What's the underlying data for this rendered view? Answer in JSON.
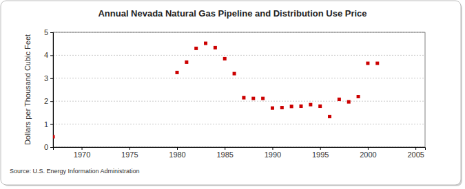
{
  "chart_data": {
    "type": "scatter",
    "title": "Annual Nevada Natural Gas Pipeline and Distribution Use Price",
    "y_label": "Dollars per Thousand Cubic Feet",
    "source": "Source: U.S. Energy Information Administration",
    "x": [
      1967,
      1980,
      1981,
      1982,
      1983,
      1984,
      1985,
      1986,
      1987,
      1988,
      1989,
      1990,
      1991,
      1992,
      1993,
      1994,
      1995,
      1996,
      1997,
      1998,
      1999,
      2000,
      2001
    ],
    "values": [
      0.45,
      3.25,
      3.7,
      4.3,
      4.52,
      4.33,
      3.85,
      3.2,
      2.15,
      2.12,
      2.12,
      1.7,
      1.72,
      1.77,
      1.78,
      1.85,
      1.78,
      1.33,
      2.08,
      1.97,
      2.2,
      3.65,
      3.65
    ],
    "color": "#cc0000",
    "marker": "square",
    "xlim": [
      1967,
      2006
    ],
    "xticks": [
      1970,
      1975,
      1980,
      1985,
      1990,
      1995,
      2000,
      2005
    ],
    "ylim": [
      0,
      5
    ],
    "yticks": [
      0,
      1,
      2,
      3,
      4,
      5
    ],
    "grid": true
  }
}
